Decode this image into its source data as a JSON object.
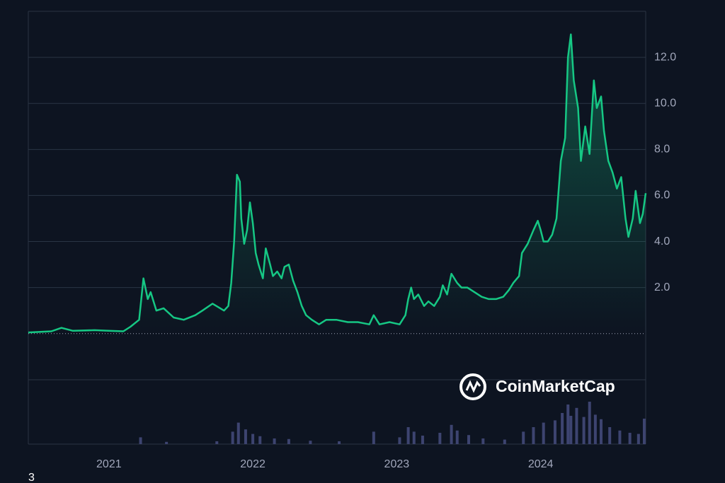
{
  "chart_data": {
    "type": "area",
    "color": "#16c784",
    "watermark": "CoinMarketCap",
    "caption": "3",
    "xlim": [
      2020.44,
      2024.73
    ],
    "xticks": [
      2021,
      2022,
      2023,
      2024
    ],
    "ylim": [
      -4.8,
      14
    ],
    "yticks": [
      {
        "value": 2,
        "label": "2.0"
      },
      {
        "value": 4,
        "label": "4.0"
      },
      {
        "value": 6,
        "label": "6.0"
      },
      {
        "value": 8,
        "label": "8.0"
      },
      {
        "value": 10,
        "label": "10.0"
      },
      {
        "value": 12,
        "label": "12.0"
      }
    ],
    "grid": true,
    "x": [
      2020.44,
      2020.6,
      2020.67,
      2020.75,
      2020.9,
      2021.0,
      2021.1,
      2021.15,
      2021.21,
      2021.24,
      2021.27,
      2021.29,
      2021.33,
      2021.38,
      2021.45,
      2021.52,
      2021.6,
      2021.65,
      2021.72,
      2021.8,
      2021.83,
      2021.85,
      2021.87,
      2021.89,
      2021.91,
      2021.92,
      2021.94,
      2021.96,
      2021.98,
      2022.0,
      2022.02,
      2022.04,
      2022.07,
      2022.09,
      2022.12,
      2022.14,
      2022.17,
      2022.2,
      2022.22,
      2022.25,
      2022.28,
      2022.31,
      2022.34,
      2022.37,
      2022.41,
      2022.46,
      2022.51,
      2022.58,
      2022.66,
      2022.73,
      2022.81,
      2022.84,
      2022.88,
      2022.95,
      2023.02,
      2023.06,
      2023.08,
      2023.1,
      2023.12,
      2023.15,
      2023.19,
      2023.22,
      2023.26,
      2023.3,
      2023.32,
      2023.35,
      2023.38,
      2023.42,
      2023.45,
      2023.49,
      2023.54,
      2023.59,
      2023.64,
      2023.69,
      2023.74,
      2023.78,
      2023.81,
      2023.85,
      2023.87,
      2023.91,
      2023.95,
      2023.98,
      2024.0,
      2024.02,
      2024.05,
      2024.08,
      2024.11,
      2024.14,
      2024.17,
      2024.19,
      2024.21,
      2024.23,
      2024.26,
      2024.28,
      2024.31,
      2024.34,
      2024.37,
      2024.39,
      2024.42,
      2024.44,
      2024.47,
      2024.5,
      2024.53,
      2024.56,
      2024.59,
      2024.61,
      2024.64,
      2024.66,
      2024.69,
      2024.71,
      2024.73
    ],
    "values": [
      0.05,
      0.1,
      0.25,
      0.12,
      0.15,
      0.12,
      0.1,
      0.3,
      0.6,
      2.4,
      1.5,
      1.8,
      1.0,
      1.1,
      0.7,
      0.6,
      0.8,
      1.0,
      1.3,
      1.0,
      1.2,
      2.2,
      4.0,
      6.9,
      6.6,
      5.0,
      3.9,
      4.5,
      5.7,
      4.8,
      3.5,
      3.0,
      2.4,
      3.7,
      3.0,
      2.5,
      2.7,
      2.4,
      2.9,
      3.0,
      2.3,
      1.8,
      1.2,
      0.8,
      0.6,
      0.4,
      0.6,
      0.6,
      0.5,
      0.5,
      0.4,
      0.8,
      0.4,
      0.5,
      0.4,
      0.8,
      1.5,
      2.0,
      1.5,
      1.7,
      1.2,
      1.4,
      1.2,
      1.6,
      2.1,
      1.7,
      2.6,
      2.2,
      2.0,
      2.0,
      1.8,
      1.6,
      1.5,
      1.5,
      1.6,
      1.9,
      2.2,
      2.5,
      3.5,
      3.9,
      4.5,
      4.9,
      4.5,
      4.0,
      4.0,
      4.3,
      5.0,
      7.5,
      8.5,
      12.0,
      13.0,
      11.0,
      9.8,
      7.5,
      9.0,
      7.8,
      11.0,
      9.8,
      10.3,
      8.8,
      7.5,
      7.0,
      6.3,
      6.8,
      5.0,
      4.2,
      5.0,
      6.2,
      4.8,
      5.2,
      6.1
    ],
    "volume": {
      "color": "#3d4470",
      "y2lim": [
        0,
        100
      ],
      "x": [
        2021.22,
        2021.4,
        2021.75,
        2021.86,
        2021.9,
        2021.95,
        2022.0,
        2022.05,
        2022.15,
        2022.25,
        2022.4,
        2022.6,
        2022.84,
        2023.02,
        2023.08,
        2023.12,
        2023.18,
        2023.3,
        2023.38,
        2023.42,
        2023.5,
        2023.6,
        2023.75,
        2023.88,
        2023.95,
        2024.02,
        2024.1,
        2024.15,
        2024.19,
        2024.21,
        2024.25,
        2024.3,
        2024.34,
        2024.38,
        2024.42,
        2024.48,
        2024.55,
        2024.62,
        2024.68,
        2024.72
      ],
      "values": [
        12,
        4,
        5,
        22,
        38,
        26,
        18,
        14,
        10,
        9,
        6,
        5,
        22,
        12,
        30,
        22,
        15,
        20,
        34,
        24,
        16,
        10,
        8,
        22,
        30,
        38,
        42,
        55,
        70,
        50,
        64,
        48,
        75,
        52,
        44,
        30,
        24,
        20,
        18,
        45
      ]
    }
  }
}
